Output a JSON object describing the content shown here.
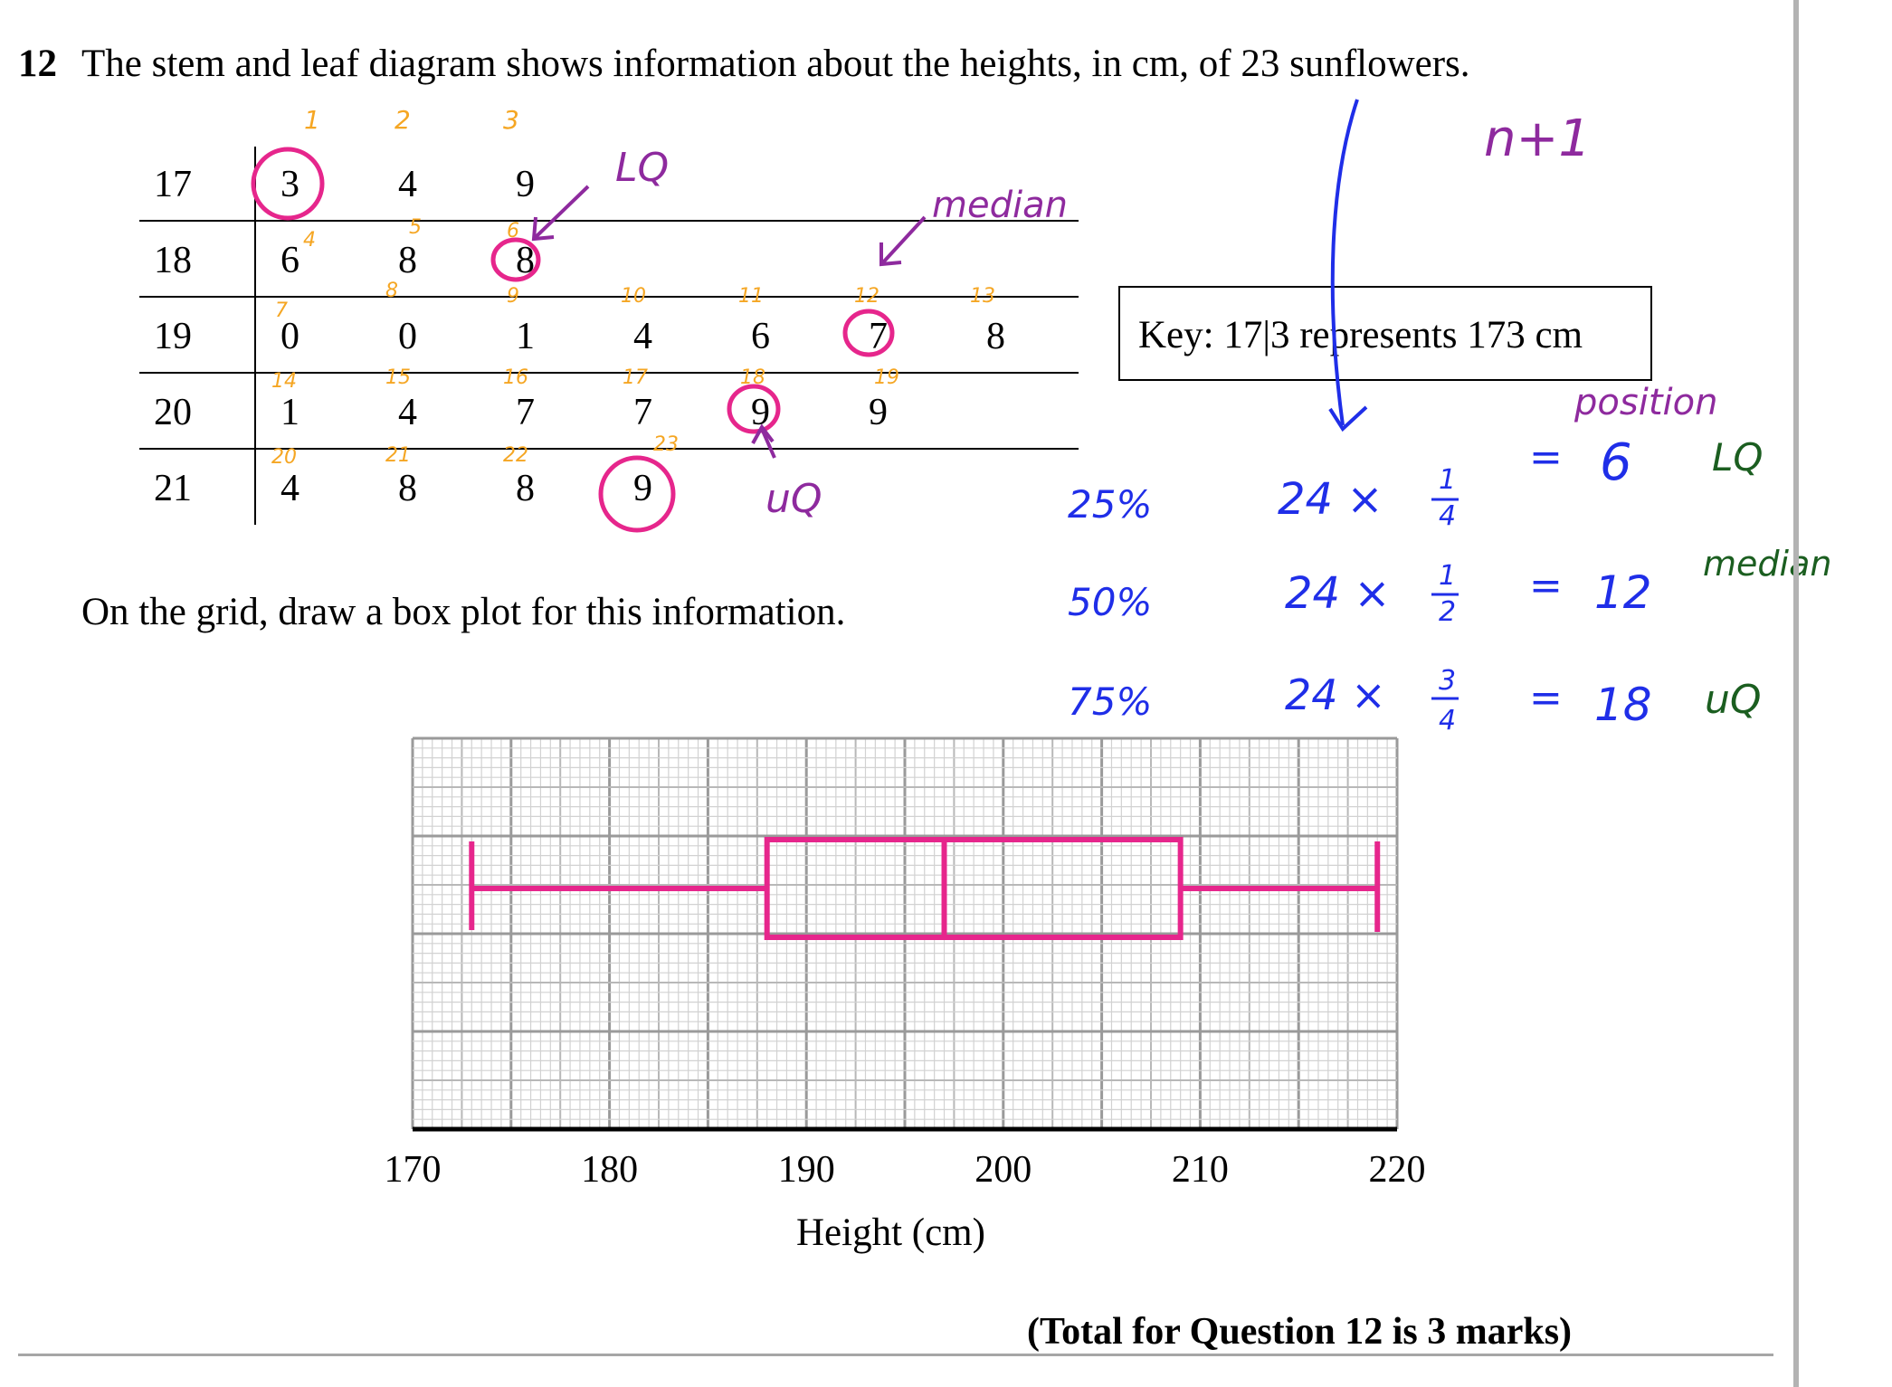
{
  "question": {
    "number": "12",
    "text": "The stem and leaf diagram shows information about the heights, in cm, of 23 sunflowers.",
    "instruction": "On the grid, draw a box plot for this information.",
    "total": "(Total for Question 12 is 3 marks)"
  },
  "stem_leaf": {
    "rows": [
      {
        "stem": "17",
        "leaves": [
          "3",
          "4",
          "9"
        ]
      },
      {
        "stem": "18",
        "leaves": [
          "6",
          "8",
          "8"
        ]
      },
      {
        "stem": "19",
        "leaves": [
          "0",
          "0",
          "1",
          "4",
          "6",
          "7",
          "8"
        ]
      },
      {
        "stem": "20",
        "leaves": [
          "1",
          "4",
          "7",
          "7",
          "9",
          "9"
        ]
      },
      {
        "stem": "21",
        "leaves": [
          "4",
          "8",
          "8",
          "9"
        ]
      }
    ],
    "key": "Key:  17|3 represents 173 cm"
  },
  "annotations": {
    "column_counts": [
      "1",
      "2",
      "3"
    ],
    "position_numbers": [
      "4",
      "5",
      "6",
      "7",
      "8",
      "9",
      "10",
      "11",
      "12",
      "13",
      "14",
      "15",
      "16",
      "17",
      "18",
      "19",
      "20",
      "21",
      "22",
      "23"
    ],
    "lq": "LQ",
    "median": "median",
    "uq": "uQ",
    "n_plus_1": "n+1",
    "position": "position",
    "percentages": [
      "25%",
      "50%",
      "75%"
    ],
    "calcs": [
      "24 × 1/4",
      "24 × 1/2",
      "24 × 3/4"
    ],
    "results": [
      "= 6",
      "= 12",
      "= 18"
    ],
    "result_labels": [
      "LQ",
      "median",
      "uQ"
    ],
    "fraction_parts": {
      "num": [
        "1",
        "1",
        "3"
      ],
      "den": [
        "4",
        "2",
        "4"
      ],
      "prefix": [
        "24 ×",
        "24 ×",
        "24 ×"
      ],
      "eq": [
        "=",
        "=",
        "="
      ],
      "vals": [
        "6",
        "12",
        "18"
      ]
    }
  },
  "chart_data": {
    "type": "box",
    "xlabel": "Height (cm)",
    "xlim": [
      170,
      220
    ],
    "ticks": [
      "170",
      "180",
      "190",
      "200",
      "210",
      "220"
    ],
    "box": {
      "min": 173,
      "lq": 188,
      "median": 197,
      "uq": 209,
      "max": 219
    }
  },
  "colors": {
    "annotation_pink": "#e6268c",
    "annotation_orange": "#f5a623",
    "annotation_purple": "#8e2a9e",
    "annotation_blue": "#1f2ee8",
    "annotation_green": "#1b5e20",
    "grid": "#c8c8c8"
  }
}
